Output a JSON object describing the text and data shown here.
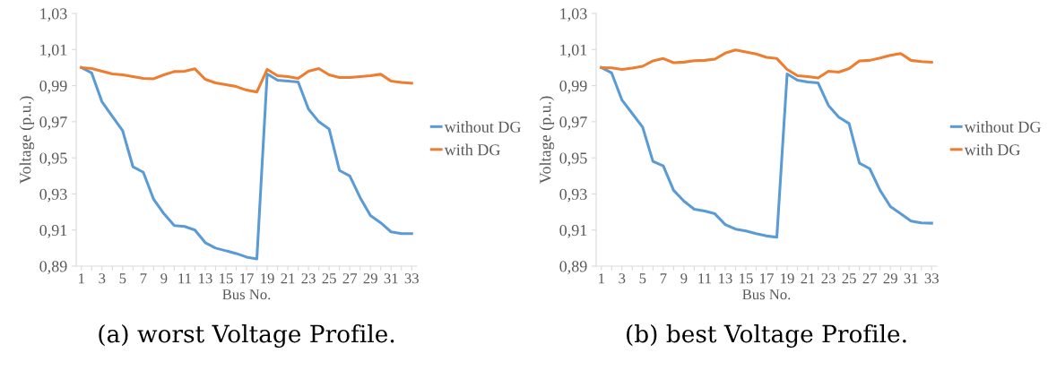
{
  "chart_data": [
    {
      "type": "line",
      "xlabel": "Bus No.",
      "ylabel": "Voltage (p.u.)",
      "categories": [
        "1",
        null,
        "3",
        null,
        "5",
        null,
        "7",
        null,
        "9",
        null,
        "11",
        null,
        "13",
        null,
        "15",
        null,
        "17",
        null,
        "19",
        null,
        "21",
        null,
        "23",
        null,
        "25",
        null,
        "27",
        null,
        "29",
        null,
        "31",
        null,
        "33"
      ],
      "series": [
        {
          "name": "without DG",
          "color": "#5b9bd5",
          "values": [
            1.0,
            0.997,
            0.981,
            0.973,
            0.965,
            0.945,
            0.942,
            0.927,
            0.919,
            0.9125,
            0.912,
            0.91,
            0.903,
            0.9,
            0.8985,
            0.897,
            0.895,
            0.894,
            0.9965,
            0.993,
            0.9925,
            0.992,
            0.977,
            0.97,
            0.966,
            0.943,
            0.94,
            0.928,
            0.918,
            0.914,
            0.909,
            0.908,
            0.908
          ]
        },
        {
          "name": "with DG",
          "color": "#ed7d31",
          "values": [
            1.0,
            0.9995,
            0.998,
            0.9965,
            0.996,
            0.995,
            0.994,
            0.9938,
            0.996,
            0.9978,
            0.998,
            0.9993,
            0.9935,
            0.9915,
            0.9905,
            0.9895,
            0.9875,
            0.9865,
            0.999,
            0.9955,
            0.995,
            0.994,
            0.998,
            0.9995,
            0.996,
            0.9945,
            0.9945,
            0.995,
            0.9955,
            0.9963,
            0.9925,
            0.9918,
            0.9913
          ]
        }
      ],
      "ylim": [
        0.89,
        1.03
      ],
      "yticks": [
        {
          "value": 0.89,
          "label": "0,89"
        },
        {
          "value": 0.91,
          "label": "0,91"
        },
        {
          "value": 0.93,
          "label": "0,93"
        },
        {
          "value": 0.95,
          "label": "0,95"
        },
        {
          "value": 0.97,
          "label": "0,97"
        },
        {
          "value": 0.99,
          "label": "0,99"
        },
        {
          "value": 1.01,
          "label": "1,01"
        },
        {
          "value": 1.03,
          "label": "1,03"
        }
      ],
      "grid": false,
      "legend": "right",
      "marker": "none",
      "line_style": "solid",
      "annotations": [
        "(a) worst Voltage Profile."
      ]
    },
    {
      "type": "line",
      "xlabel": "Bus No.",
      "ylabel": "Voltage (p.u.)",
      "categories": [
        "1",
        null,
        "3",
        null,
        "5",
        null,
        "7",
        null,
        "9",
        null,
        "11",
        null,
        "13",
        null,
        "15",
        null,
        "17",
        null,
        "19",
        null,
        "21",
        null,
        "23",
        null,
        "25",
        null,
        "27",
        null,
        "29",
        null,
        "31",
        null,
        "33"
      ],
      "series": [
        {
          "name": "without DG",
          "color": "#5b9bd5",
          "values": [
            1.0,
            0.997,
            0.982,
            0.9745,
            0.967,
            0.948,
            0.9455,
            0.932,
            0.926,
            0.9215,
            0.9205,
            0.919,
            0.913,
            0.9105,
            0.9095,
            0.908,
            0.9067,
            0.906,
            0.9965,
            0.993,
            0.992,
            0.9915,
            0.979,
            0.9725,
            0.969,
            0.947,
            0.944,
            0.932,
            0.923,
            0.919,
            0.915,
            0.914,
            0.9138
          ]
        },
        {
          "name": "with DG",
          "color": "#ed7d31",
          "values": [
            1.0,
            0.9998,
            0.999,
            0.9997,
            1.0007,
            1.0037,
            1.005,
            1.0027,
            1.003,
            1.0038,
            1.004,
            1.0047,
            1.008,
            1.0098,
            1.0087,
            1.0075,
            1.0057,
            1.005,
            0.999,
            0.9955,
            0.995,
            0.9943,
            0.998,
            0.9975,
            0.9995,
            1.0037,
            1.004,
            1.0053,
            1.0068,
            1.0078,
            1.004,
            1.0033,
            1.003
          ]
        }
      ],
      "ylim": [
        0.89,
        1.03
      ],
      "yticks": [
        {
          "value": 0.89,
          "label": "0,89"
        },
        {
          "value": 0.91,
          "label": "0,91"
        },
        {
          "value": 0.93,
          "label": "0,93"
        },
        {
          "value": 0.95,
          "label": "0,95"
        },
        {
          "value": 0.97,
          "label": "0,97"
        },
        {
          "value": 0.99,
          "label": "0,99"
        },
        {
          "value": 1.01,
          "label": "1,01"
        },
        {
          "value": 1.03,
          "label": "1,03"
        }
      ],
      "grid": false,
      "legend": "right",
      "marker": "none",
      "line_style": "solid",
      "annotations": [
        "(b) best Voltage Profile."
      ]
    }
  ]
}
